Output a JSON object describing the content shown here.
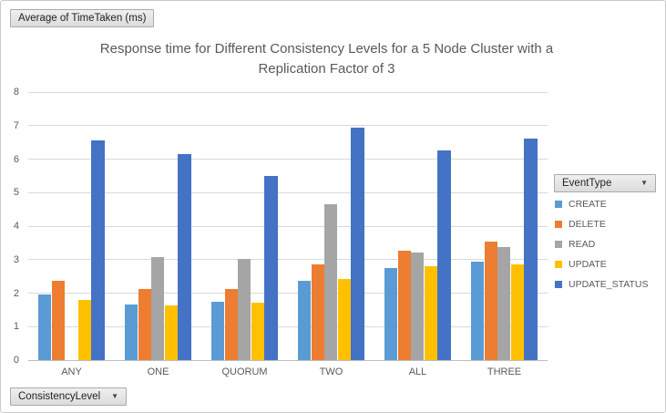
{
  "pivot_buttons": {
    "value_field": "Average of TimeTaken (ms)",
    "legend_field": "EventType",
    "axis_field": "ConsistencyLevel"
  },
  "chart_data": {
    "type": "bar",
    "title": "Response time for Different Consistency Levels for a 5 Node Cluster with a Replication Factor of 3",
    "categories": [
      "ANY",
      "ONE",
      "QUORUM",
      "TWO",
      "ALL",
      "THREE"
    ],
    "series": [
      {
        "name": "CREATE",
        "color": "#5B9BD5",
        "values": [
          1.95,
          1.66,
          1.75,
          2.38,
          2.76,
          2.93
        ]
      },
      {
        "name": "DELETE",
        "color": "#ED7D31",
        "values": [
          2.36,
          2.13,
          2.12,
          2.87,
          3.26,
          3.55
        ]
      },
      {
        "name": "READ",
        "color": "#A5A5A5",
        "values": [
          0,
          3.08,
          3.02,
          4.65,
          3.2,
          3.37
        ]
      },
      {
        "name": "UPDATE",
        "color": "#FFC000",
        "values": [
          1.79,
          1.63,
          1.71,
          2.41,
          2.79,
          2.87
        ]
      },
      {
        "name": "UPDATE_STATUS",
        "color": "#4472C4",
        "values": [
          6.56,
          6.16,
          5.5,
          6.94,
          6.25,
          6.6
        ]
      }
    ],
    "ylim": [
      0,
      8
    ],
    "ytick_step": 1,
    "grid": true,
    "legend_position": "right",
    "xlabel": "",
    "ylabel": ""
  }
}
